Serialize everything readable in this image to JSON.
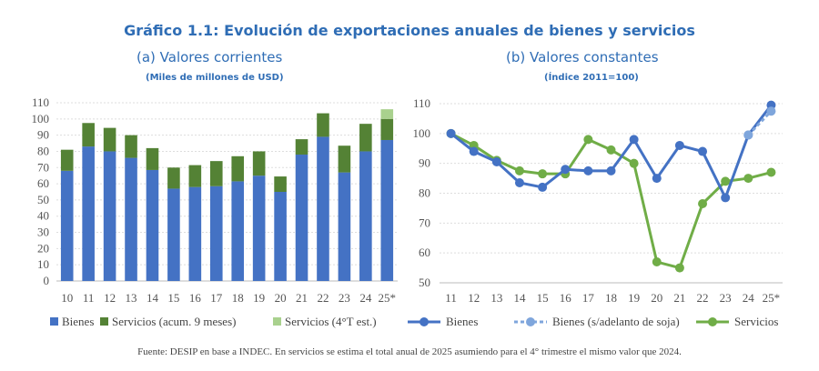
{
  "title": "Gráfico 1.1: Evolución de exportaciones anuales de bienes y servicios",
  "source": "Fuente: DESIP en base a INDEC. En servicios se estima el total anual de 2025 asumiendo para el 4° trimestre el mismo valor que 2024.",
  "colors": {
    "bienes": "#4472c4",
    "servicios": "#548235",
    "servicios_est": "#a9d18e",
    "bienes_soja": "#7fa6dc",
    "servicios_line": "#70ad47"
  },
  "chart_data": [
    {
      "type": "bar",
      "stacked": true,
      "title": "(a) Valores corrientes",
      "subtitle": "(Miles de millones de USD)",
      "categories": [
        "10",
        "11",
        "12",
        "13",
        "14",
        "15",
        "16",
        "17",
        "18",
        "19",
        "20",
        "21",
        "22",
        "23",
        "24",
        "25*"
      ],
      "ylim": [
        0,
        110
      ],
      "yticks": [
        0,
        10,
        20,
        30,
        40,
        50,
        60,
        70,
        80,
        90,
        100,
        110
      ],
      "grid": true,
      "legend": "bottom",
      "series": [
        {
          "name": "Bienes",
          "values": [
            68,
            83,
            80,
            76,
            68.5,
            57,
            58,
            58.5,
            61.5,
            65,
            55,
            78,
            89,
            67,
            80,
            87
          ]
        },
        {
          "name": "Servicios (acum. 9 meses)",
          "values": [
            13,
            14.5,
            14.5,
            14,
            13.5,
            13,
            13.5,
            15.5,
            15.5,
            15,
            9.5,
            9.5,
            14.5,
            16.5,
            17,
            13
          ]
        },
        {
          "name": "Servicios (4°T est.)",
          "values": [
            0,
            0,
            0,
            0,
            0,
            0,
            0,
            0,
            0,
            0,
            0,
            0,
            0,
            0,
            0,
            6
          ]
        }
      ]
    },
    {
      "type": "line",
      "title": "(b) Valores constantes",
      "subtitle": "(Índice 2011=100)",
      "categories": [
        "11",
        "12",
        "13",
        "14",
        "15",
        "16",
        "17",
        "18",
        "19",
        "20",
        "21",
        "22",
        "23",
        "24",
        "25*"
      ],
      "ylim": [
        50,
        110
      ],
      "yticks": [
        50,
        60,
        70,
        80,
        90,
        100,
        110
      ],
      "grid": true,
      "legend": "bottom",
      "series": [
        {
          "name": "Bienes",
          "values": [
            100,
            94,
            90.5,
            83.5,
            82,
            88,
            87.5,
            87.5,
            98,
            85,
            96,
            94,
            78.5,
            99.5,
            109.5
          ]
        },
        {
          "name": "Bienes (s/adelanto de soja)",
          "values": [
            null,
            null,
            null,
            null,
            null,
            null,
            null,
            null,
            null,
            null,
            null,
            null,
            null,
            99.5,
            107.5
          ]
        },
        {
          "name": "Servicios",
          "values": [
            100,
            96,
            91,
            87.5,
            86.5,
            86.5,
            98,
            94.5,
            90,
            57,
            55,
            76.5,
            84,
            85,
            87
          ]
        }
      ]
    }
  ]
}
